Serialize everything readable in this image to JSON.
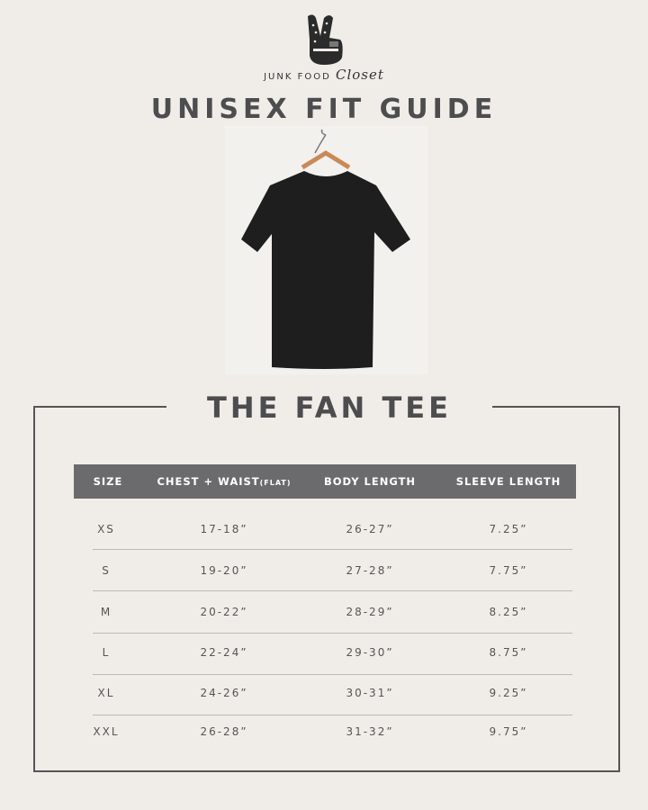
{
  "brand": {
    "name_prefix": "JUNK FOOD",
    "name_script": "Closet",
    "logo_icon": "peace-hand-icon"
  },
  "title": "UNISEX FIT GUIDE",
  "product": {
    "name": "THE FAN TEE",
    "image": "black-tshirt-on-hanger"
  },
  "table": {
    "headers": {
      "size": "SIZE",
      "chest": "CHEST + WAIST",
      "chest_note": "(FLAT)",
      "body": "BODY LENGTH",
      "sleeve": "SLEEVE LENGTH"
    },
    "rows": [
      {
        "size": "XS",
        "chest": "17-18”",
        "body": "26-27”",
        "sleeve": "7.25”"
      },
      {
        "size": "S",
        "chest": "19-20”",
        "body": "27-28”",
        "sleeve": "7.75”"
      },
      {
        "size": "M",
        "chest": "20-22”",
        "body": "28-29”",
        "sleeve": "8.25”"
      },
      {
        "size": "L",
        "chest": "22-24”",
        "body": "29-30”",
        "sleeve": "8.75”"
      },
      {
        "size": "XL",
        "chest": "24-26”",
        "body": "30-31”",
        "sleeve": "9.25”"
      },
      {
        "size": "XXL",
        "chest": "26-28”",
        "body": "31-32”",
        "sleeve": "9.75”"
      }
    ]
  },
  "colors": {
    "background": "#f0ede9",
    "header_bar": "#6b6b6d",
    "heading": "#4d4d4f"
  }
}
